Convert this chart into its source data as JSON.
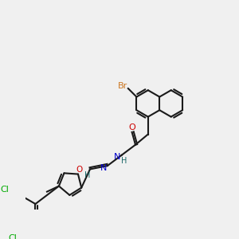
{
  "background_color": "#f0f0f0",
  "bond_color": "#1a1a1a",
  "title": "",
  "atoms": {
    "Br": {
      "color": "#cc7722",
      "label": "Br"
    },
    "O": {
      "color": "#cc0000",
      "label": "O"
    },
    "N_hydrazone": {
      "color": "#0000cc",
      "label": "N"
    },
    "N_amide": {
      "color": "#0000cc",
      "label": "N"
    },
    "Cl1": {
      "color": "#00aa00",
      "label": "Cl"
    },
    "Cl2": {
      "color": "#00aa00",
      "label": "Cl"
    },
    "H_amide": {
      "color": "#1a6666",
      "label": "H"
    },
    "H_imine": {
      "color": "#1a6666",
      "label": "H"
    }
  }
}
